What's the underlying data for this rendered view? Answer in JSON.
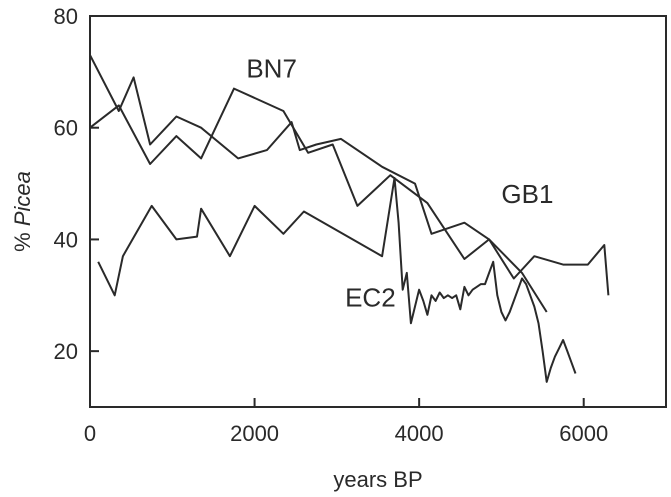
{
  "chart_data": {
    "type": "line",
    "xlabel": "years BP",
    "ylabel_prefix": "% ",
    "ylabel_italic": "Picea",
    "xlim": [
      0,
      7000
    ],
    "ylim": [
      10,
      80
    ],
    "x_ticks": [
      0,
      2000,
      4000,
      6000
    ],
    "y_ticks": [
      20,
      40,
      60,
      80
    ],
    "x_tick_labels": [
      "0",
      "2000",
      "4000",
      "6000"
    ],
    "y_tick_labels": [
      "20",
      "40",
      "60",
      "80"
    ],
    "grid": false,
    "series": [
      {
        "name": "BN7",
        "label": "BN7",
        "x": [
          0,
          350,
          530,
          730,
          1050,
          1350,
          1800,
          2150,
          2450,
          2550,
          2750,
          3050,
          3550,
          3950,
          4150,
          4550,
          4850,
          5250,
          5550
        ],
        "y": [
          73,
          63,
          69,
          57,
          62,
          60,
          54.5,
          56,
          61,
          56,
          57,
          58,
          53,
          50,
          41,
          43,
          40,
          34,
          27
        ]
      },
      {
        "name": "GB1",
        "label": "GB1",
        "x": [
          0,
          350,
          730,
          1050,
          1350,
          1750,
          2350,
          2650,
          2950,
          3250,
          3650,
          4100,
          4550,
          4850,
          5150,
          5400,
          5750,
          6050,
          6250,
          6300
        ],
        "y": [
          60,
          64,
          53.5,
          58.5,
          54.5,
          67,
          63,
          55.5,
          57,
          46,
          51.5,
          46.5,
          36.5,
          40,
          33,
          37,
          35.5,
          35.5,
          39,
          30
        ]
      },
      {
        "name": "EC2",
        "label": "EC2",
        "x": [
          100,
          300,
          400,
          750,
          1050,
          1300,
          1350,
          1700,
          2000,
          2350,
          2600,
          3550,
          3700,
          3750,
          3800,
          3850,
          3900,
          3950,
          4000,
          4050,
          4100,
          4150,
          4200,
          4250,
          4300,
          4350,
          4400,
          4450,
          4500,
          4550,
          4600,
          4650,
          4700,
          4750,
          4800,
          4850,
          4900,
          4950,
          5000,
          5050,
          5100,
          5150,
          5200,
          5250,
          5300,
          5350,
          5400,
          5450,
          5500,
          5550,
          5600,
          5650,
          5700,
          5750,
          5800,
          5850,
          5900
        ],
        "y": [
          36,
          30,
          37,
          46,
          40,
          40.5,
          45.5,
          37,
          46,
          41,
          45,
          37,
          51,
          43,
          31,
          34,
          25,
          28,
          31,
          29,
          26.5,
          30,
          29,
          30.5,
          29.5,
          30,
          29.5,
          30,
          27.5,
          31.5,
          30,
          31,
          31.5,
          32,
          32,
          34,
          36,
          30,
          27,
          25.5,
          27,
          29,
          31,
          33,
          32,
          30,
          28,
          25,
          20,
          14.5,
          17,
          19,
          20.5,
          22,
          20,
          18,
          16
        ]
      }
    ],
    "annotations": [
      {
        "text": "BN7",
        "x": 1900,
        "y": 69
      },
      {
        "text": "GB1",
        "x": 5000,
        "y": 46.5
      },
      {
        "text": "EC2",
        "x": 3100,
        "y": 28
      }
    ]
  }
}
